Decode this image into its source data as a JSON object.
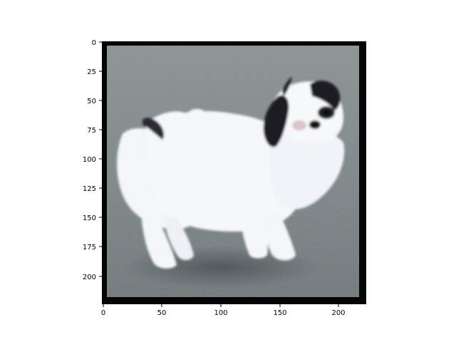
{
  "figure": {
    "background": "#ffffff",
    "axes_color": "#000000",
    "image_kind": "photograph",
    "subject": "white-and-black small dog (Japanese Chin) standing on asphalt",
    "frame_color": "#000000",
    "ground_color": "#7f8687",
    "dog_colors": {
      "body": "#f4f6f8",
      "markings": "#1c1c22"
    }
  },
  "axes": {
    "x": {
      "ticks": [
        0,
        50,
        100,
        150,
        200
      ],
      "labels": [
        "0",
        "50",
        "100",
        "150",
        "200"
      ],
      "range": [
        -0.5,
        223.5
      ]
    },
    "y": {
      "ticks": [
        0,
        25,
        50,
        75,
        100,
        125,
        150,
        175,
        200
      ],
      "labels": [
        "0",
        "25",
        "50",
        "75",
        "100",
        "125",
        "150",
        "175",
        "200"
      ],
      "range": [
        223.5,
        -0.5
      ],
      "inverted": true
    }
  }
}
